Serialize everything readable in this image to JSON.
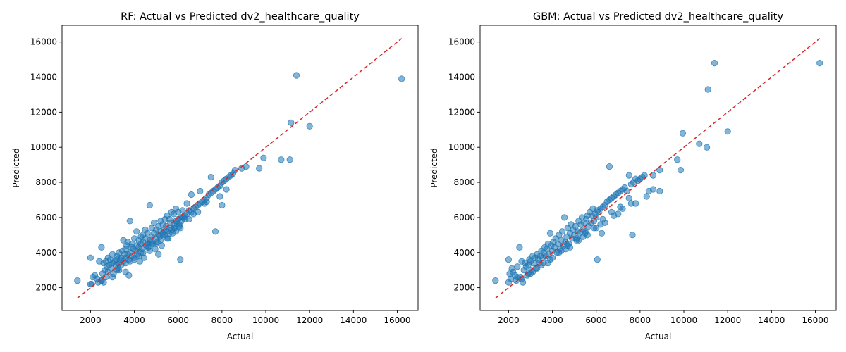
{
  "chart_data": [
    {
      "type": "scatter",
      "title": "RF: Actual vs Predicted dv2_healthcare_quality",
      "xlabel": "Actual",
      "ylabel": "Predicted",
      "xlim": [
        700,
        16950
      ],
      "ylim": [
        700,
        16950
      ],
      "xticks": [
        2000,
        4000,
        6000,
        8000,
        10000,
        12000,
        14000,
        16000
      ],
      "yticks": [
        2000,
        4000,
        6000,
        8000,
        10000,
        12000,
        14000,
        16000
      ],
      "tick_labels": [
        "2000",
        "4000",
        "6000",
        "8000",
        "10000",
        "12000",
        "14000",
        "16000"
      ],
      "reference_line": {
        "from": [
          1400,
          1400
        ],
        "to": [
          16200,
          16200
        ],
        "color": "#d62728",
        "style": "dashed"
      },
      "point_color": "#1f77b4",
      "point_alpha": 0.55,
      "grid": false,
      "series": [
        {
          "x": [
            1400,
            2000,
            2050,
            2100,
            2200,
            2300,
            2350,
            2400,
            2500,
            2500,
            2550,
            2600,
            2600,
            2650,
            2700,
            2750,
            2800,
            2800,
            2850,
            2900,
            2950,
            3000,
            3000,
            3050,
            3100,
            3150,
            3200,
            3200,
            3250,
            3300,
            3300,
            3350,
            3400,
            3400,
            3450,
            3500,
            3500,
            3550,
            3600,
            3600,
            3650,
            3700,
            3700,
            3750,
            3800,
            3800,
            3850,
            3900,
            3900,
            3950,
            4000,
            4000,
            4050,
            4100,
            4100,
            4150,
            4200,
            4200,
            4250,
            4300,
            4300,
            4350,
            4400,
            4400,
            4450,
            4500,
            4500,
            4550,
            4600,
            4600,
            4650,
            4700,
            4700,
            4750,
            4800,
            4800,
            4850,
            4900,
            4900,
            4950,
            5000,
            5000,
            5050,
            5100,
            5100,
            5150,
            5200,
            5200,
            5250,
            5300,
            5300,
            5350,
            5400,
            5400,
            5450,
            5500,
            5500,
            5550,
            5600,
            5600,
            5650,
            5700,
            5700,
            5750,
            5800,
            5800,
            5850,
            5900,
            5900,
            5950,
            6000,
            6000,
            6050,
            6100,
            6100,
            6150,
            6200,
            6200,
            6300,
            6400,
            6500,
            6600,
            6700,
            6800,
            6900,
            7000,
            7100,
            7200,
            7300,
            7400,
            7500,
            7600,
            7700,
            7800,
            7900,
            8000,
            8100,
            8200,
            8300,
            8400,
            8500,
            8600,
            8900,
            9100,
            9700,
            9900,
            10700,
            11100,
            11150,
            11400,
            12000,
            16200,
            2000,
            2500,
            3000,
            3600,
            3750,
            4000,
            4400,
            4700,
            5000,
            5100,
            5500,
            5900,
            6100,
            6300,
            6400,
            6600,
            7000,
            7500,
            7700,
            8000,
            8200,
            3200,
            3600,
            4300,
            4800,
            5300,
            5800,
            6250,
            6700,
            7200,
            7900,
            2700,
            3300,
            3800,
            4200,
            4600,
            5200,
            5600,
            6050,
            6500,
            6900,
            7300
          ],
          "y": [
            2400,
            3700,
            2200,
            2600,
            2700,
            2500,
            2300,
            3500,
            4300,
            2400,
            2800,
            2300,
            3400,
            3000,
            3500,
            3200,
            2900,
            3700,
            3300,
            3600,
            3100,
            3400,
            3900,
            2800,
            3500,
            3300,
            3600,
            3800,
            3100,
            3400,
            4000,
            3600,
            3300,
            3700,
            4100,
            3500,
            4700,
            3900,
            3700,
            4200,
            4400,
            3900,
            4600,
            3600,
            4000,
            5800,
            4300,
            3800,
            4500,
            4200,
            3600,
            4800,
            4100,
            4400,
            5200,
            3900,
            4300,
            4700,
            3500,
            4500,
            4900,
            4200,
            4600,
            5000,
            3700,
            4800,
            5300,
            4400,
            4500,
            5100,
            4300,
            4700,
            6700,
            4600,
            4900,
            5400,
            4500,
            5100,
            5700,
            4200,
            4800,
            5300,
            4600,
            5000,
            5500,
            4900,
            5200,
            5800,
            4400,
            5100,
            5600,
            5300,
            5000,
            5900,
            5500,
            5200,
            6100,
            4800,
            5400,
            5900,
            5700,
            5300,
            6300,
            5100,
            5600,
            6200,
            5400,
            5800,
            6500,
            5700,
            5900,
            6300,
            5500,
            3600,
            6000,
            5800,
            6400,
            6000,
            6100,
            6200,
            6400,
            6300,
            6500,
            6600,
            6700,
            6800,
            6900,
            7000,
            7100,
            7300,
            7400,
            7500,
            7600,
            7700,
            7800,
            8000,
            8100,
            8200,
            8300,
            8400,
            8500,
            8700,
            8800,
            8900,
            8800,
            9400,
            9300,
            9300,
            11400,
            14100,
            11200,
            13900,
            2200,
            2400,
            2600,
            2900,
            2700,
            3700,
            4000,
            4100,
            4500,
            3900,
            4800,
            5200,
            5400,
            5900,
            6800,
            7300,
            7500,
            8300,
            5200,
            6700,
            7600,
            3000,
            3400,
            4000,
            4500,
            5000,
            5400,
            6000,
            6200,
            6800,
            7200,
            2600,
            3000,
            3500,
            3800,
            4300,
            4700,
            5100,
            5600,
            5900,
            6300,
            6900
          ]
        }
      ]
    },
    {
      "type": "scatter",
      "title": "GBM: Actual vs Predicted dv2_healthcare_quality",
      "xlabel": "Actual",
      "ylabel": "Predicted",
      "xlim": [
        700,
        16950
      ],
      "ylim": [
        700,
        16950
      ],
      "xticks": [
        2000,
        4000,
        6000,
        8000,
        10000,
        12000,
        14000,
        16000
      ],
      "yticks": [
        2000,
        4000,
        6000,
        8000,
        10000,
        12000,
        14000,
        16000
      ],
      "tick_labels": [
        "2000",
        "4000",
        "6000",
        "8000",
        "10000",
        "12000",
        "14000",
        "16000"
      ],
      "reference_line": {
        "from": [
          1400,
          1400
        ],
        "to": [
          16200,
          16200
        ],
        "color": "#d62728",
        "style": "dashed"
      },
      "point_color": "#1f77b4",
      "point_alpha": 0.55,
      "grid": false,
      "series": [
        {
          "x": [
            1400,
            2000,
            2050,
            2100,
            2150,
            2200,
            2300,
            2350,
            2400,
            2500,
            2550,
            2600,
            2650,
            2700,
            2750,
            2800,
            2850,
            2900,
            2950,
            3000,
            3050,
            3100,
            3150,
            3200,
            3250,
            3300,
            3350,
            3400,
            3450,
            3500,
            3550,
            3600,
            3650,
            3700,
            3750,
            3800,
            3850,
            3900,
            3950,
            4000,
            4050,
            4100,
            4150,
            4200,
            4250,
            4300,
            4350,
            4400,
            4450,
            4500,
            4550,
            4600,
            4650,
            4700,
            4750,
            4800,
            4850,
            4900,
            4950,
            5000,
            5050,
            5100,
            5150,
            5200,
            5250,
            5300,
            5350,
            5400,
            5450,
            5500,
            5550,
            5600,
            5650,
            5700,
            5750,
            5800,
            5850,
            5900,
            5950,
            6000,
            6050,
            6100,
            6200,
            6300,
            6400,
            6500,
            6600,
            6700,
            6800,
            6900,
            7000,
            7100,
            7200,
            7300,
            7400,
            7500,
            7600,
            7700,
            7800,
            7900,
            8000,
            8100,
            8200,
            8300,
            8400,
            8600,
            8900,
            9700,
            9850,
            9950,
            10700,
            11050,
            11100,
            11400,
            12000,
            16200,
            2000,
            2400,
            2900,
            3300,
            3600,
            4000,
            4400,
            4800,
            5200,
            5600,
            6000,
            6400,
            6800,
            7200,
            7600,
            2600,
            3100,
            3500,
            3900,
            4300,
            4700,
            5100,
            5500,
            5900,
            6300,
            6700,
            7100,
            7500,
            3000,
            3800,
            4600,
            5400,
            6200,
            7000,
            7800,
            8600,
            6050,
            6250,
            6600,
            7650,
            8900
          ],
          "y": [
            2400,
            3600,
            2800,
            2500,
            3100,
            2900,
            2700,
            2400,
            3200,
            4300,
            2600,
            3500,
            2300,
            3000,
            3400,
            3200,
            2700,
            3300,
            3600,
            3500,
            3000,
            3800,
            3400,
            3700,
            3100,
            3900,
            3600,
            3400,
            3800,
            4100,
            3700,
            4000,
            4300,
            3800,
            4200,
            4500,
            3900,
            5100,
            4400,
            4100,
            4600,
            4300,
            4800,
            4000,
            4500,
            5000,
            4200,
            4700,
            5200,
            4400,
            6000,
            4600,
            4900,
            5400,
            4500,
            5100,
            5600,
            4800,
            5300,
            5000,
            5500,
            4700,
            5200,
            5800,
            5100,
            5600,
            6000,
            5300,
            5700,
            5200,
            5900,
            6100,
            5500,
            6300,
            5700,
            6100,
            6500,
            5800,
            6200,
            6000,
            6400,
            6300,
            6500,
            6600,
            6700,
            6900,
            7000,
            7100,
            7200,
            7300,
            7400,
            7500,
            7600,
            7700,
            7500,
            8400,
            7900,
            8000,
            8200,
            8100,
            8200,
            8300,
            8400,
            7200,
            7500,
            8400,
            8700,
            9300,
            8700,
            10800,
            10200,
            10000,
            13300,
            14800,
            10900,
            14800,
            2300,
            2600,
            2800,
            3100,
            3400,
            3700,
            4100,
            4300,
            4700,
            5000,
            5400,
            5700,
            6100,
            6500,
            6800,
            2500,
            2900,
            3300,
            3600,
            4000,
            4400,
            4800,
            5100,
            5400,
            5900,
            6300,
            6600,
            7100,
            2800,
            3400,
            4200,
            4900,
            5600,
            6200,
            6800,
            7600,
            3600,
            5100,
            8900,
            5000,
            7500
          ]
        }
      ]
    }
  ]
}
